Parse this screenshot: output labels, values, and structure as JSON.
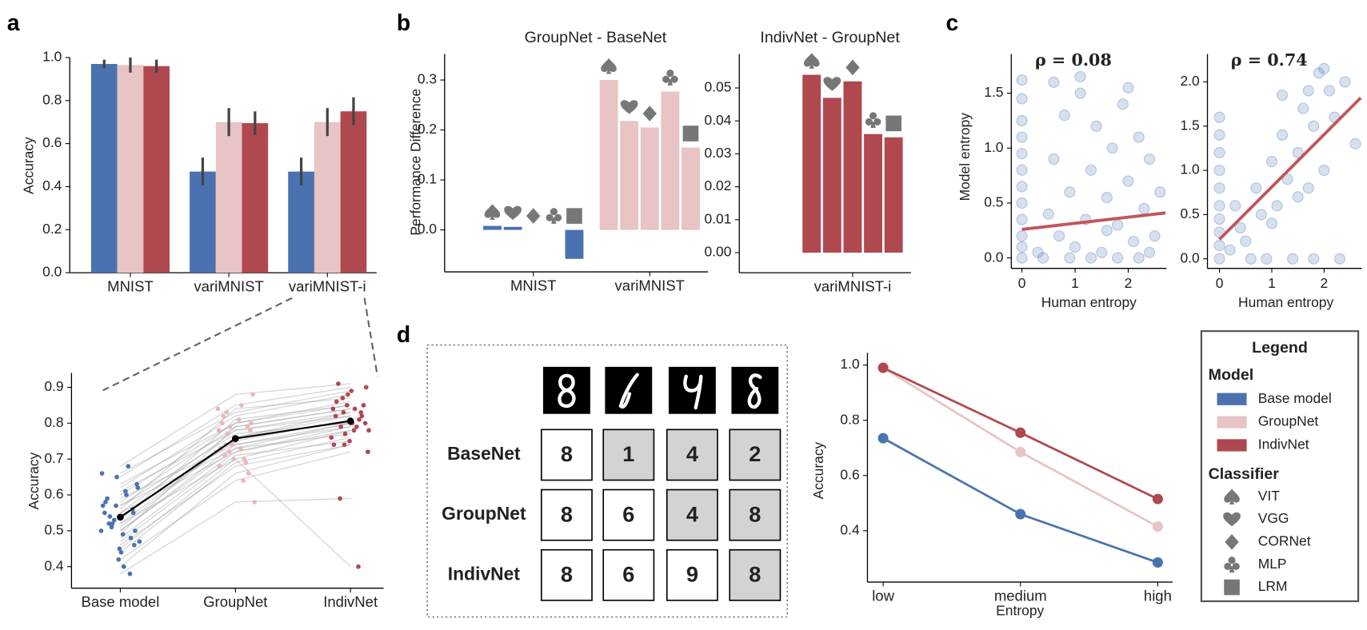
{
  "panel_labels": [
    "a",
    "b",
    "c",
    "d"
  ],
  "chart_data": [
    {
      "type": "bar",
      "categories": [
        "MNIST",
        "variMNIST",
        "variMNIST-i"
      ],
      "ylabel": "Accuracy",
      "ylim": [
        0,
        1
      ],
      "yticks": [
        {
          "value": 0,
          "label": "0.0"
        },
        0.2,
        0.4,
        0.6,
        0.8,
        {
          "value": 1,
          "label": "1.0"
        }
      ],
      "series": [
        {
          "color": "#4a72b0",
          "values": [
            0.97,
            0.47,
            0.47
          ],
          "errors": [
            0.02,
            0.065,
            0.065
          ]
        },
        {
          "color": "#e8c4c4",
          "values": [
            0.965,
            0.7,
            0.7
          ],
          "errors": [
            0.035,
            0.065,
            0.065
          ]
        },
        {
          "color": "#b0484f",
          "values": [
            0.96,
            0.695,
            0.75
          ],
          "errors": [
            0.03,
            0.055,
            0.065
          ]
        }
      ]
    },
    {
      "type": "line",
      "categories": [
        "Base model",
        "GroupNet",
        "IndivNet"
      ],
      "ylabel": "Accuracy",
      "ylim": [
        0.34,
        0.94
      ],
      "yticks": [
        0.4,
        0.5,
        0.6,
        0.7,
        0.8,
        0.9
      ],
      "category_colors": [
        "#4a72b0",
        "#e8b8b8",
        "#b0484f"
      ],
      "series": [
        {
          "color": "#000000",
          "values": [
            0.538,
            0.757,
            0.806
          ]
        }
      ],
      "subjects": [
        [
          0.5,
          0.74,
          0.8
        ],
        [
          0.55,
          0.78,
          0.83
        ],
        [
          0.6,
          0.8,
          0.86
        ],
        [
          0.45,
          0.7,
          0.78
        ],
        [
          0.52,
          0.76,
          0.82
        ],
        [
          0.58,
          0.79,
          0.84
        ],
        [
          0.62,
          0.82,
          0.88
        ],
        [
          0.48,
          0.72,
          0.79
        ],
        [
          0.4,
          0.66,
          0.74
        ],
        [
          0.65,
          0.85,
          0.9
        ],
        [
          0.54,
          0.75,
          0.81
        ],
        [
          0.57,
          0.77,
          0.8
        ],
        [
          0.5,
          0.73,
          0.77
        ],
        [
          0.68,
          0.88,
          0.91
        ],
        [
          0.44,
          0.69,
          0.76
        ],
        [
          0.53,
          0.81,
          0.85
        ],
        [
          0.59,
          0.74,
          0.79
        ],
        [
          0.47,
          0.71,
          0.75
        ],
        [
          0.56,
          0.84,
          0.87
        ],
        [
          0.61,
          0.78,
          0.82
        ],
        [
          0.42,
          0.64,
          0.72
        ],
        [
          0.51,
          0.76,
          0.83
        ],
        [
          0.55,
          0.72,
          0.78
        ],
        [
          0.63,
          0.8,
          0.85
        ],
        [
          0.38,
          0.58,
          0.59
        ],
        [
          0.49,
          0.79,
          0.84
        ],
        [
          0.57,
          0.73,
          0.8
        ],
        [
          0.52,
          0.7,
          0.4
        ],
        [
          0.66,
          0.83,
          0.89
        ],
        [
          0.46,
          0.68,
          0.74
        ]
      ]
    },
    {
      "type": "bar",
      "title": "GroupNet - BaseNet",
      "ylabel": "Performance Difference",
      "categories": [
        "MNIST",
        "variMNIST"
      ],
      "category_colors": [
        "#4a72b0",
        "#e8c4c4"
      ],
      "ylim": [
        -0.084,
        0.352
      ],
      "yticks": [
        {
          "value": 0,
          "label": "0.0"
        },
        0.1,
        0.2,
        0.3
      ],
      "series": [
        {
          "marker": "spade",
          "values": [
            0.008,
            0.3
          ]
        },
        {
          "marker": "heart",
          "values": [
            0.006,
            0.218
          ]
        },
        {
          "marker": "diamond",
          "values": [
            0,
            0.205
          ]
        },
        {
          "marker": "club",
          "values": [
            0,
            0.277
          ]
        },
        {
          "marker": "square",
          "values": [
            -0.058,
            0.165
          ]
        }
      ]
    },
    {
      "type": "bar",
      "title": "IndivNet - GroupNet",
      "categories": [
        "variMNIST-i"
      ],
      "category_colors": [
        "#b0484f"
      ],
      "ylim": [
        -0.0061,
        0.0603
      ],
      "yticks": [
        {
          "value": 0,
          "label": "0.00"
        },
        0.01,
        0.02,
        0.03,
        0.04,
        0.05
      ],
      "series": [
        {
          "marker": "spade",
          "values": [
            0.054
          ]
        },
        {
          "marker": "heart",
          "values": [
            0.047
          ]
        },
        {
          "marker": "diamond",
          "values": [
            0.052
          ]
        },
        {
          "marker": "club",
          "values": [
            0.036
          ]
        },
        {
          "marker": "square",
          "values": [
            0.035
          ]
        }
      ]
    },
    {
      "type": "scatter",
      "annotation": "ρ = 0.08",
      "xlabel": "Human entropy",
      "ylabel": "Model entropy",
      "xlim": [
        -0.2,
        2.72
      ],
      "ylim": [
        -0.095,
        1.857
      ],
      "xticks": [
        0,
        1,
        2
      ],
      "yticks": [
        {
          "value": 0,
          "label": "0.0"
        },
        0.5,
        {
          "value": 1,
          "label": "1.0"
        },
        1.5
      ],
      "color": "#4a72b0",
      "fit_color": "#c0575a",
      "x": [
        0,
        0,
        0,
        0,
        0,
        0,
        0,
        0,
        0,
        0,
        0,
        0,
        0.3,
        0.5,
        0.6,
        0.7,
        0.8,
        0.9,
        1.0,
        1.1,
        1.2,
        1.3,
        1.4,
        1.5,
        1.6,
        1.7,
        1.8,
        1.9,
        2.0,
        2.1,
        2.2,
        2.3,
        2.4,
        2.5,
        2.6,
        0.4,
        0.9,
        1.3,
        1.8,
        2.2,
        0.6,
        1.1,
        1.6,
        2.0,
        2.4
      ],
      "y": [
        0,
        0.1,
        0.2,
        0.35,
        0.5,
        0.65,
        0.8,
        0.95,
        1.1,
        1.25,
        1.45,
        1.62,
        0.05,
        0.4,
        0.9,
        0.2,
        1.3,
        0.6,
        0.1,
        1.5,
        0.35,
        0.8,
        1.2,
        0.05,
        0.55,
        1.0,
        0.3,
        1.4,
        0.7,
        0.15,
        1.1,
        0.45,
        0.9,
        0.2,
        0.6,
        0,
        0,
        0,
        0,
        0,
        1.6,
        1.65,
        0.25,
        1.55,
        0.05
      ],
      "fit": {
        "x": [
          0,
          2.7
        ],
        "y": [
          0.26,
          0.41
        ]
      }
    },
    {
      "type": "scatter",
      "annotation": "ρ = 0.74",
      "xlabel": "Human entropy",
      "xlim": [
        -0.23,
        2.72
      ],
      "ylim": [
        -0.108,
        2.315
      ],
      "xticks": [
        0,
        1,
        2
      ],
      "yticks": [
        {
          "value": 0,
          "label": "0.0"
        },
        0.5,
        {
          "value": 1,
          "label": "1.0"
        },
        1.5,
        {
          "value": 2,
          "label": "2.0"
        }
      ],
      "color": "#4a72b0",
      "fit_color": "#c0575a",
      "x": [
        0,
        0,
        0,
        0,
        0,
        0,
        0,
        0,
        0,
        0,
        0.2,
        0.4,
        0.5,
        0.7,
        0.8,
        1.0,
        1.1,
        1.2,
        1.3,
        1.5,
        1.6,
        1.7,
        1.8,
        1.9,
        2.0,
        2.1,
        2.2,
        2.4,
        2.6,
        0.6,
        0.9,
        1.4,
        1.8,
        2.3,
        0.3,
        1.0,
        1.5,
        2.0,
        1.7,
        1.2
      ],
      "y": [
        0,
        0.15,
        0.3,
        0.45,
        0.6,
        0.8,
        1.0,
        1.2,
        1.4,
        1.6,
        0.1,
        0.35,
        0.2,
        0.8,
        0.5,
        1.1,
        0.6,
        1.4,
        0.9,
        1.2,
        1.7,
        0.8,
        1.5,
        2.1,
        1.0,
        1.9,
        1.6,
        2.0,
        1.3,
        0,
        0,
        0,
        0,
        0,
        0.6,
        0.4,
        0.7,
        2.15,
        1.9,
        1.85
      ],
      "fit": {
        "x": [
          0,
          2.7
        ],
        "y": [
          0.22,
          1.82
        ]
      }
    },
    {
      "type": "line",
      "categories": [
        "low",
        "medium",
        "high"
      ],
      "xlabel": "Entropy",
      "ylabel": "Accuracy",
      "ylim": [
        0.214,
        1.044
      ],
      "yticks": [
        0.4,
        0.6,
        0.8,
        {
          "value": 1,
          "label": "1.0"
        }
      ],
      "series": [
        {
          "color": "#4a72b0",
          "values": [
            0.735,
            0.46,
            0.285
          ]
        },
        {
          "color": "#e8c4c4",
          "values": [
            0.99,
            0.685,
            0.415
          ]
        },
        {
          "color": "#b0484f",
          "values": [
            0.99,
            0.755,
            0.515
          ]
        }
      ]
    }
  ],
  "digit_table": {
    "rows": [
      {
        "label": "BaseNet",
        "color": "#4a72b0",
        "digits": [
          8,
          1,
          4,
          2
        ],
        "shaded": [
          false,
          true,
          true,
          true
        ]
      },
      {
        "label": "GroupNet",
        "color": "#e6b8b8",
        "digits": [
          8,
          6,
          4,
          8
        ],
        "shaded": [
          false,
          false,
          true,
          true
        ]
      },
      {
        "label": "IndivNet",
        "color": "#b0484f",
        "digits": [
          8,
          6,
          9,
          8
        ],
        "shaded": [
          false,
          false,
          false,
          true
        ]
      }
    ]
  },
  "legend": {
    "title": "Legend",
    "model_title": "Model",
    "models": [
      {
        "name": "Base model",
        "color": "#4a72b0"
      },
      {
        "name": "GroupNet",
        "color": "#e8c4c4"
      },
      {
        "name": "IndivNet",
        "color": "#b0484f"
      }
    ],
    "classifier_title": "Classifier",
    "classifiers": [
      {
        "name": "VIT",
        "marker": "spade"
      },
      {
        "name": "VGG",
        "marker": "heart"
      },
      {
        "name": "CORNet",
        "marker": "diamond"
      },
      {
        "name": "MLP",
        "marker": "club"
      },
      {
        "name": "LRM",
        "marker": "square"
      }
    ]
  }
}
